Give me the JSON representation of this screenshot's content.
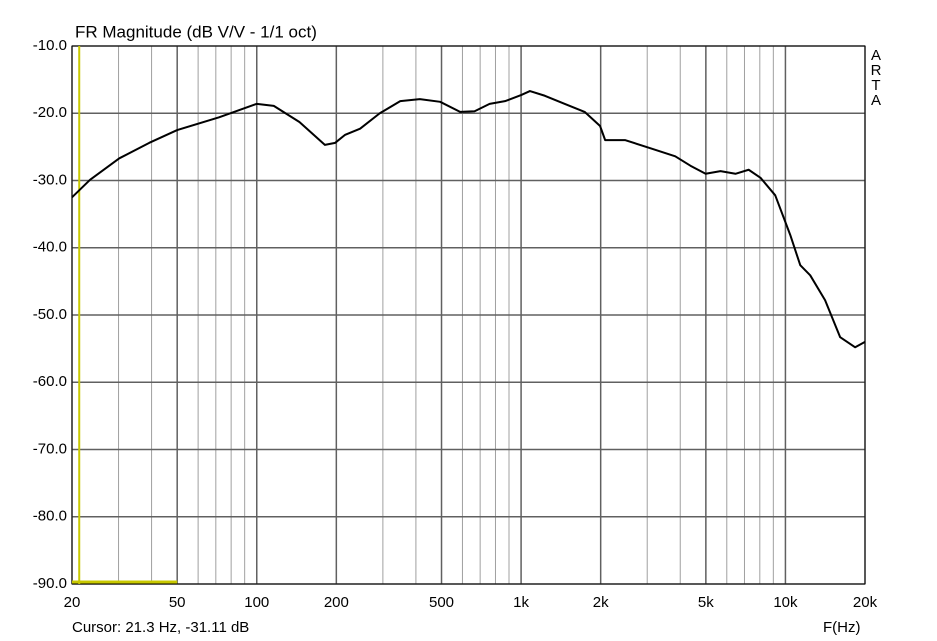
{
  "chart_data": {
    "type": "line",
    "title": "FR Magnitude (dB V/V - 1/1 oct)",
    "xlabel": "F(Hz)",
    "side_label": "ARTA",
    "log_x": true,
    "grid": true,
    "xlim": [
      20,
      20000
    ],
    "ylim": [
      -90,
      -10
    ],
    "xticks": [
      20,
      50,
      100,
      200,
      500,
      {
        "value": 1000,
        "label": "1k"
      },
      {
        "value": 2000,
        "label": "2k"
      },
      {
        "value": 5000,
        "label": "5k"
      },
      {
        "value": 10000,
        "label": "10k"
      },
      {
        "value": 20000,
        "label": "20k"
      }
    ],
    "xminor": [
      30,
      40,
      60,
      70,
      80,
      90,
      300,
      400,
      600,
      700,
      800,
      900,
      3000,
      4000,
      6000,
      7000,
      8000,
      9000
    ],
    "yticks": [
      {
        "value": -10,
        "label": "-10.0"
      },
      {
        "value": -20,
        "label": "-20.0"
      },
      {
        "value": -30,
        "label": "-30.0"
      },
      {
        "value": -40,
        "label": "-40.0"
      },
      {
        "value": -50,
        "label": "-50.0"
      },
      {
        "value": -60,
        "label": "-60.0"
      },
      {
        "value": -70,
        "label": "-70.0"
      },
      {
        "value": -80,
        "label": "-80.0"
      },
      {
        "value": -90,
        "label": "-90.0"
      }
    ],
    "cursor": {
      "label": "Cursor: 21.3 Hz, -31.11 dB",
      "x": 21.3,
      "segment": [
        20,
        50
      ],
      "color": "#c8c800"
    },
    "series": [
      {
        "name": "FR",
        "color": "#000000",
        "x": [
          20,
          23.4,
          30.2,
          39.2,
          50,
          72,
          100,
          116,
          145,
          181,
          198,
          216,
          246,
          292,
          349,
          414,
          494,
          588,
          667,
          760,
          869,
          1000,
          1080,
          1230,
          1460,
          1740,
          1990,
          2080,
          2480,
          3080,
          3830,
          4370,
          4990,
          5680,
          6470,
          7260,
          8050,
          9150,
          10430,
          11380,
          12410,
          14130,
          16110,
          18360,
          20000
        ],
        "values": [
          -32.5,
          -29.9,
          -26.7,
          -24.4,
          -22.5,
          -20.6,
          -18.6,
          -18.9,
          -21.3,
          -24.7,
          -24.4,
          -23.2,
          -22.3,
          -20,
          -18.2,
          -17.9,
          -18.3,
          -19.8,
          -19.7,
          -18.6,
          -18.2,
          -17.3,
          -16.7,
          -17.4,
          -18.6,
          -19.8,
          -21.9,
          -24,
          -24,
          -25.2,
          -26.4,
          -27.8,
          -29,
          -28.6,
          -29,
          -28.4,
          -29.6,
          -32.2,
          -38.1,
          -42.6,
          -44.1,
          -47.8,
          -53.3,
          -54.8,
          -54
        ]
      }
    ]
  }
}
